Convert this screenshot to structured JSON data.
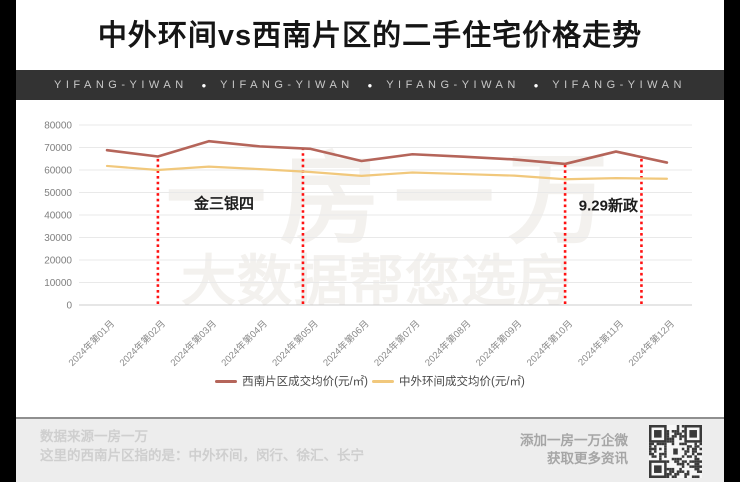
{
  "title": "中外环间vs西南片区的二手住宅价格走势",
  "banner": {
    "items": [
      "YIFANG-YIWAN",
      "YIFANG-YIWAN",
      "YIFANG-YIWAN",
      "YIFANG-YIWAN"
    ],
    "separator": "●"
  },
  "watermark": {
    "line1": "一房一万",
    "line2": "大数据帮您选房"
  },
  "chart_data": {
    "type": "line",
    "categories": [
      "2024年第01月",
      "2024年第02月",
      "2024年第03月",
      "2024年第04月",
      "2024年第05月",
      "2024年第06月",
      "2024年第07月",
      "2024年第08月",
      "2024年第09月",
      "2024年第10月",
      "2024年第11月",
      "2024年第12月"
    ],
    "series": [
      {
        "name": "西南片区成交均价(元/㎡)",
        "color": "#b5655a",
        "values": [
          68800,
          66000,
          72800,
          70500,
          69400,
          64000,
          67000,
          65900,
          64700,
          62700,
          68200,
          63300
        ]
      },
      {
        "name": "中外环间成交均价(元/㎡)",
        "color": "#f1c87c",
        "values": [
          61800,
          60000,
          61500,
          60400,
          59100,
          57400,
          58900,
          58200,
          57500,
          55900,
          56400,
          56100
        ]
      }
    ],
    "title": "",
    "xlabel": "",
    "ylabel": "",
    "ylim": [
      0,
      80000
    ],
    "ytick_step": 10000,
    "grid": true,
    "legend_position": "bottom",
    "annotation_lines": [
      {
        "x_month": 2,
        "top_value": 66000,
        "color": "#ff1212"
      },
      {
        "x_month": 4.85,
        "top_value": 69400,
        "color": "#ff1212"
      },
      {
        "x_month": 10,
        "top_value": 62700,
        "color": "#ff1212"
      },
      {
        "x_month": 11.5,
        "top_value": 65700,
        "color": "#ff1212"
      }
    ],
    "annotations": [
      {
        "text": "金三银四",
        "x_month": 3.3,
        "y_value": 43000
      },
      {
        "text": "9.29新政",
        "x_month": 10.85,
        "y_value": 42000
      }
    ]
  },
  "footer": {
    "left_line1": "数据来源一房一万",
    "left_line2": "这里的西南片区指的是：中外环间，闵行、徐汇、长宁",
    "right_line1": "添加一房一万企微",
    "right_line2": "获取更多资讯",
    "qr_icon": "qr-code"
  },
  "colors": {
    "side_bars": "#000000",
    "banner_bg": "#333333",
    "series_red": "#b5655a",
    "series_yellow": "#f1c87c",
    "annotation_red": "#ff1212",
    "gridline": "#e9e9e9",
    "axis_label": "#7f7f7f",
    "footer_bg": "#ededed"
  }
}
